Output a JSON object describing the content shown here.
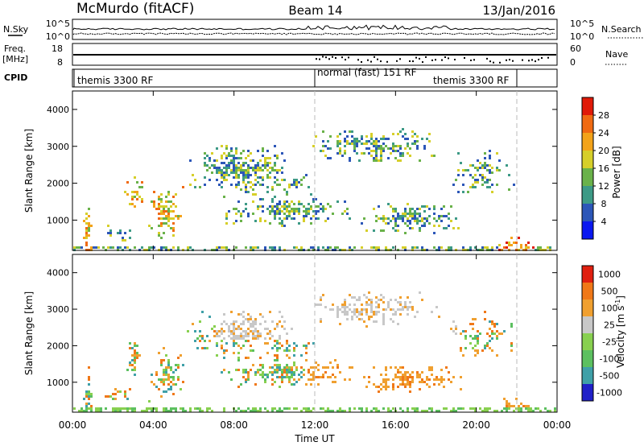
{
  "header": {
    "title_left": "McMurdo (fitACF)",
    "title_center": "Beam 14",
    "title_right": "13/Jan/2016"
  },
  "summary_panels": {
    "nsky_label": "N.Sky",
    "nsky_ticks": [
      "10^5",
      "10^0"
    ],
    "nsearch_label": "N.Search",
    "nsearch_ticks": [
      "10^5",
      "10^0"
    ],
    "freq_label": "Freq.",
    "freq_unit": "[MHz]",
    "freq_ticks": [
      "18",
      "8"
    ],
    "nave_label": "Nave",
    "nave_ticks": [
      "60",
      "0"
    ],
    "cpid_label": "CPID",
    "cpid_segments": [
      "themis 3300 RF",
      "normal (fast) 151 RF",
      "themis 3300 RF"
    ]
  },
  "chart_data": [
    {
      "type": "heatmap",
      "name": "power",
      "ylabel": "Slant Range [km]",
      "yticks": [
        "1000",
        "2000",
        "3000",
        "4000"
      ],
      "ylim": [
        180,
        4500
      ],
      "colorbar_label": "Power [dB]",
      "colorbar_ticks": [
        "4",
        "8",
        "12",
        "16",
        "20",
        "24",
        "28"
      ],
      "colorbar_range": [
        0,
        32
      ],
      "colors": [
        "#0a18f0",
        "#2c56b8",
        "#3d9a86",
        "#6ab24a",
        "#d6cf2a",
        "#f3a31a",
        "#f06a12",
        "#e01a08"
      ]
    },
    {
      "type": "heatmap",
      "name": "velocity",
      "ylabel": "Slant Range [km]",
      "yticks": [
        "1000",
        "2000",
        "3000",
        "4000"
      ],
      "ylim": [
        180,
        4500
      ],
      "xlabel": "Time UT",
      "xticks": [
        "00:00",
        "04:00",
        "08:00",
        "12:00",
        "16:00",
        "20:00",
        "00:00"
      ],
      "colorbar_label": "Velocity [m s",
      "colorbar_label_sup": "-1",
      "colorbar_label_end": "]",
      "colorbar_ticks": [
        "1000",
        "500",
        "100",
        "25",
        "-25",
        "-100",
        "-500",
        "-1000"
      ],
      "colors": [
        "#2020c8",
        "#3fa0a8",
        "#5cc060",
        "#88d050",
        "#c8c8c8",
        "#f0a030",
        "#f07818",
        "#e02010"
      ]
    }
  ]
}
